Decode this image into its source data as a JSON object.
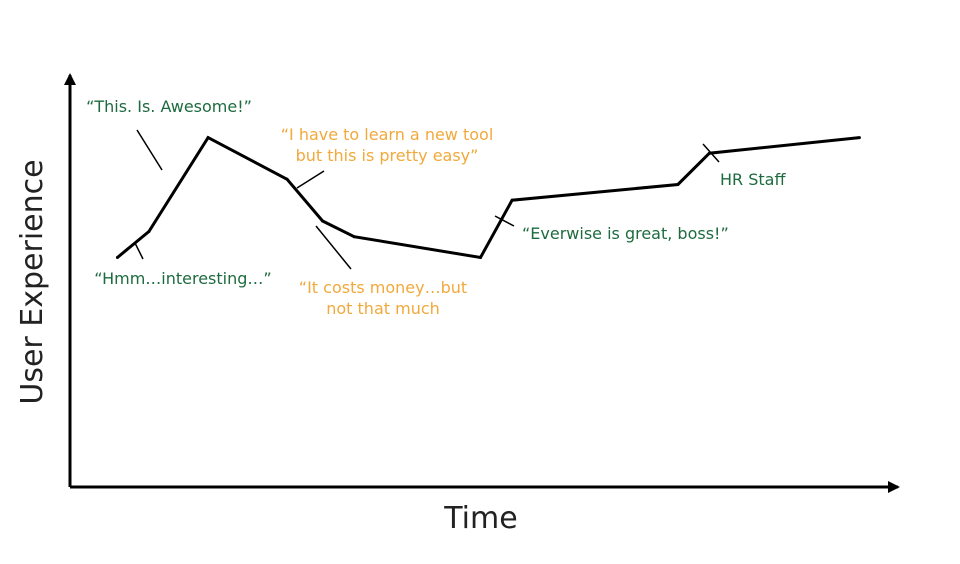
{
  "chart_data": {
    "type": "line",
    "title": "",
    "xlabel": "Time",
    "ylabel": "User Experience",
    "grid": false,
    "legend": "none",
    "colors": {
      "line": "#000000",
      "axis": "#000000",
      "annotation_green": "#1e6b3f",
      "annotation_orange": "#f2a93b"
    },
    "series": [
      {
        "x": [
          0.6,
          1.0,
          1.75,
          2.75,
          3.2,
          3.6,
          5.2,
          5.6,
          7.7,
          8.1,
          10.0
        ],
        "values": [
          4.4,
          4.9,
          6.7,
          5.9,
          5.1,
          4.8,
          4.4,
          5.5,
          5.8,
          6.4,
          6.7
        ]
      }
    ],
    "xlim": [
      0,
      10.4
    ],
    "ylim": [
      0,
      7.9
    ],
    "annotations": [
      {
        "name": "annotation-hmm-interesting",
        "lines": [
          "“Hmm…interesting…”"
        ],
        "color": "#1e6b3f",
        "point_index": 1
      },
      {
        "name": "annotation-this-is-awesome",
        "lines": [
          "“This. Is. Awesome!”"
        ],
        "color": "#1e6b3f",
        "point_index": 2
      },
      {
        "name": "annotation-learn-new-tool",
        "lines": [
          "“I have to learn a new tool",
          "but this is pretty easy”"
        ],
        "color": "#f2a93b",
        "point_index": 4
      },
      {
        "name": "annotation-costs-money",
        "lines": [
          "“It costs money…but",
          "not that much"
        ],
        "color": "#f2a93b",
        "point_index": 4
      },
      {
        "name": "annotation-everwise-great",
        "lines": [
          "“Everwise is great, boss!”"
        ],
        "color": "#1e6b3f",
        "point_index": 7
      },
      {
        "name": "annotation-hr-staff",
        "lines": [
          "HR Staff"
        ],
        "color": "#1e6b3f",
        "point_index": 9
      }
    ]
  }
}
